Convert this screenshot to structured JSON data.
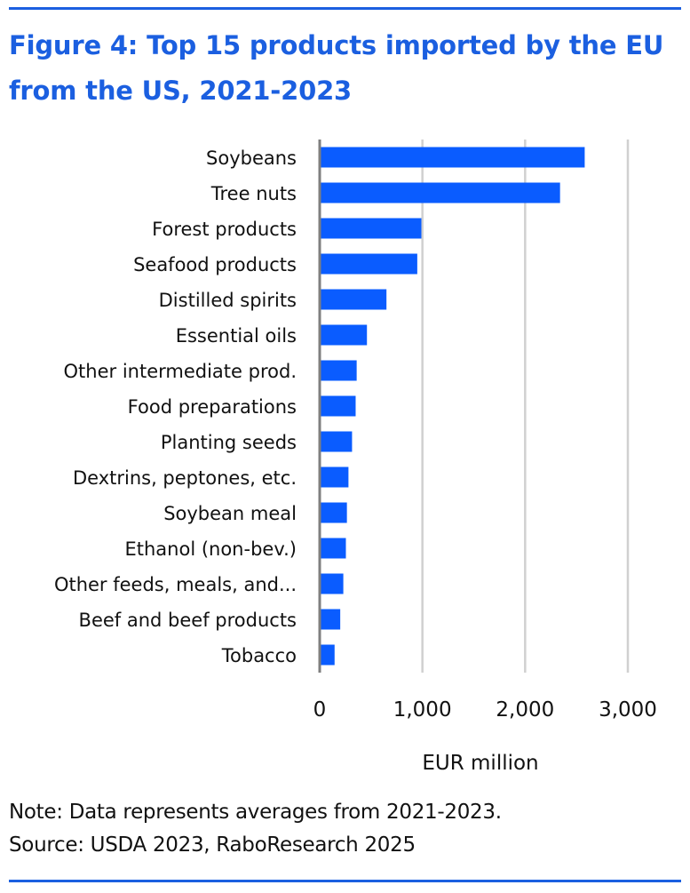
{
  "colors": {
    "accent": "#1b5fe0",
    "bar": "#0a5cff",
    "grid": "#d0d0d0",
    "axis": "#7f7f7f",
    "text": "#111111"
  },
  "header": {
    "title_line1": "Figure 4: Top 15 products imported by the EU",
    "title_line2": "from the US, 2021-2023"
  },
  "footer": {
    "note": "Note: Data represents averages from 2021-2023.",
    "source": "Source: USDA 2023, RaboResearch 2025"
  },
  "chart_data": {
    "type": "bar",
    "orientation": "horizontal",
    "categories": [
      "Soybeans",
      "Tree nuts",
      "Forest products",
      "Seafood products",
      "Distilled spirits",
      "Essential oils",
      "Other intermediate prod.",
      "Food preparations",
      "Planting seeds",
      "Dextrins, peptones, etc.",
      "Soybean meal",
      "Ethanol (non-bev.)",
      "Other feeds, meals, and...",
      "Beef and beef products",
      "Tobacco"
    ],
    "values": [
      2580,
      2340,
      990,
      950,
      650,
      460,
      360,
      350,
      315,
      280,
      265,
      255,
      230,
      200,
      145
    ],
    "xlim": [
      0,
      3000
    ],
    "xticks": [
      0,
      1000,
      2000,
      3000
    ],
    "xtick_labels": [
      "0",
      "1,000",
      "2,000",
      "3,000"
    ],
    "xlabel": "EUR million",
    "grid": "vertical"
  }
}
